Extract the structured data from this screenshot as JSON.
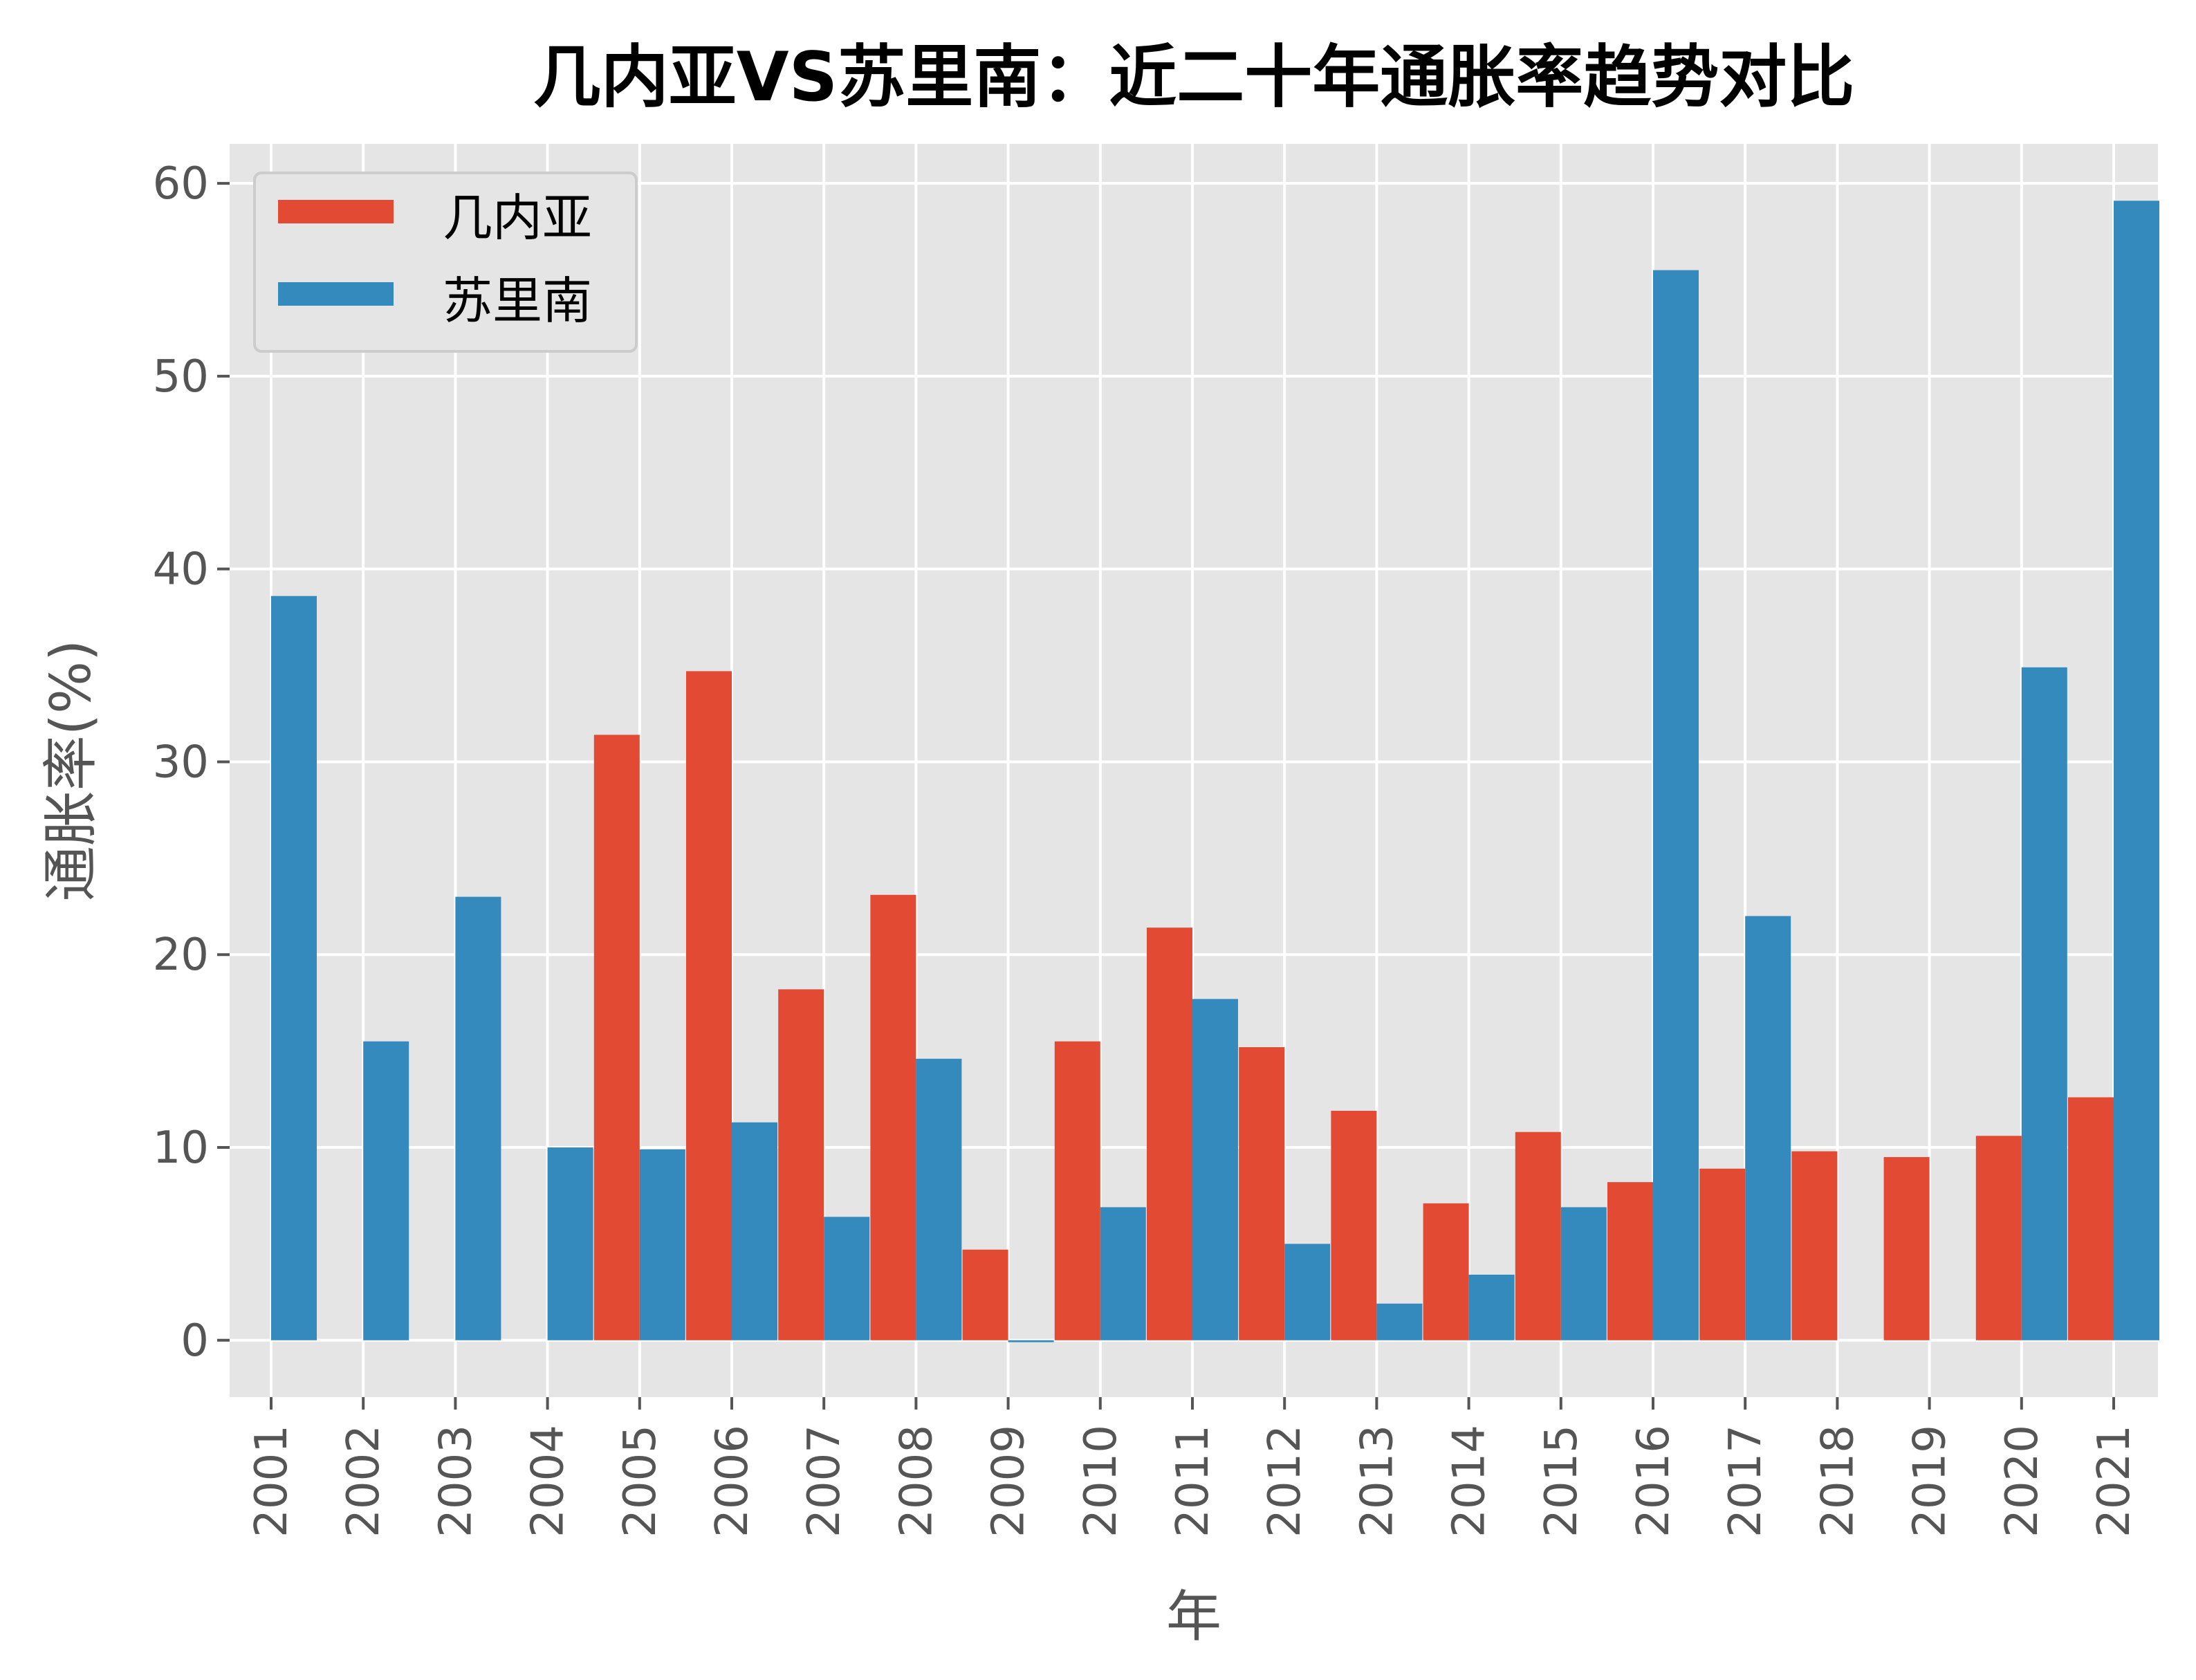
{
  "chart_data": {
    "type": "bar",
    "title": "几内亚VS苏里南：近二十年通胀率趋势对比",
    "xlabel": "年",
    "ylabel": "通胀率(%)",
    "ylim": [
      -2.95,
      62.05
    ],
    "yticks": [
      0,
      10,
      20,
      30,
      40,
      50,
      60
    ],
    "grid": true,
    "legend_position": "top-left",
    "categories": [
      "2001",
      "2002",
      "2003",
      "2004",
      "2005",
      "2006",
      "2007",
      "2008",
      "2009",
      "2010",
      "2011",
      "2012",
      "2013",
      "2014",
      "2015",
      "2016",
      "2017",
      "2018",
      "2019",
      "2020",
      "2021"
    ],
    "series": [
      {
        "name": "几内亚",
        "color": "#E24A33",
        "values": [
          null,
          null,
          null,
          null,
          31.4,
          34.7,
          18.2,
          23.1,
          4.7,
          15.5,
          21.4,
          15.2,
          11.9,
          7.1,
          10.8,
          8.2,
          8.9,
          9.8,
          9.5,
          10.6,
          12.6
        ]
      },
      {
        "name": "苏里南",
        "color": "#348ABD",
        "values": [
          38.6,
          15.5,
          23.0,
          10.0,
          9.9,
          11.3,
          6.4,
          14.6,
          -0.1,
          6.9,
          17.7,
          5.0,
          1.9,
          3.4,
          6.9,
          55.5,
          22.0,
          null,
          null,
          34.9,
          59.1
        ]
      }
    ],
    "background_color": "#E5E5E5"
  }
}
